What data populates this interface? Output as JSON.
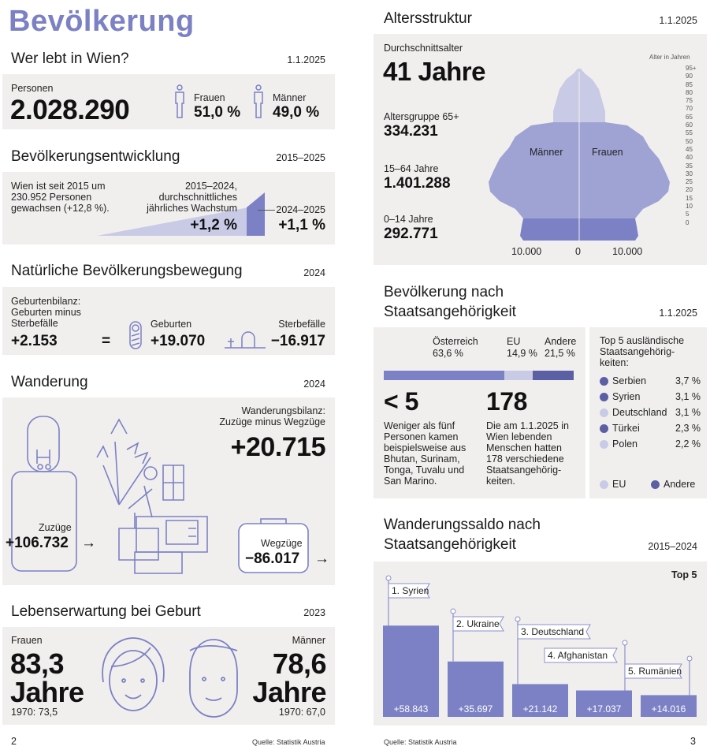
{
  "colors": {
    "accent": "#7b81c4",
    "dark": "#5b5fa3",
    "light": "#c9cbe6",
    "mid": "#9ea3d4",
    "panel": "#f1efee"
  },
  "left": {
    "title": "Bevölkerung",
    "wer": {
      "heading": "Wer lebt in Wien?",
      "date": "1.1.2025",
      "personen_label": "Personen",
      "personen_value": "2.028.290",
      "frauen_label": "Frauen",
      "frauen_value": "51,0 %",
      "maenner_label": "Männer",
      "maenner_value": "49,0 %"
    },
    "entw": {
      "heading": "Bevölkerungsentwicklung",
      "date": "2015–2025",
      "text": "Wien ist seit 2015 um 230.952 Personen gewachsen (+12,8 %).",
      "avg_label": "2015–2024, durchschnittliches jährliches Wachstum",
      "avg_value": "+1,2 %",
      "last_label": "2024–2025",
      "last_value": "+1,1 %"
    },
    "natur": {
      "heading": "Natürliche Bevölkerungsbewegung",
      "date": "2024",
      "bilanz_label": "Geburtenbilanz: Geburten minus Sterbefälle",
      "bilanz_value": "+2.153",
      "eq": "=",
      "geb_label": "Geburten",
      "geb_value": "+19.070",
      "sterb_label": "Sterbefälle",
      "sterb_value": "−16.917"
    },
    "wand": {
      "heading": "Wanderung",
      "date": "2024",
      "bilanz_label": "Wanderungsbilanz: Zuzüge minus Wegzüge",
      "bilanz_value": "+20.715",
      "zu_label": "Zuzüge",
      "zu_value": "+106.732",
      "weg_label": "Wegzüge",
      "weg_value": "−86.017",
      "arrow": "→"
    },
    "leben": {
      "heading": "Lebenserwartung bei Geburt",
      "date": "2023",
      "f_label": "Frauen",
      "f_value": "83,3",
      "f_unit": "Jahre",
      "f_1970": "1970: 73,5",
      "m_label": "Männer",
      "m_value": "78,6",
      "m_unit": "Jahre",
      "m_1970": "1970: 67,0"
    },
    "page": "2",
    "source": "Quelle: Statistik Austria"
  },
  "right": {
    "alter": {
      "heading": "Altersstruktur",
      "date": "1.1.2025",
      "durch_label": "Durchschnittsalter",
      "durch_value": "41 Jahre",
      "g65_label": "Altersgruppe 65+",
      "g65_value": "334.231",
      "g15_label": "15–64 Jahre",
      "g15_value": "1.401.288",
      "g0_label": "0–14 Jahre",
      "g0_value": "292.771",
      "axis_title": "Alter in Jahren",
      "ages": [
        "95+",
        "90",
        "85",
        "80",
        "75",
        "70",
        "65",
        "60",
        "55",
        "50",
        "45",
        "40",
        "35",
        "30",
        "25",
        "20",
        "15",
        "10",
        "5",
        "0"
      ],
      "maenner": "Männer",
      "frauen": "Frauen",
      "x_ticks": [
        "10.000",
        "0",
        "10.000"
      ]
    },
    "staat": {
      "heading1": "Bevölkerung nach",
      "heading2": "Staatsangehörigkeit",
      "date": "1.1.2025",
      "oe_label": "Österreich",
      "oe_value": "63,6 %",
      "eu_label": "EU",
      "eu_value": "14,9 %",
      "andere_label": "Andere",
      "andere_value": "21,5 %",
      "shares": [
        63.6,
        14.9,
        21.5
      ],
      "lt5": "< 5",
      "lt5_text": "Weniger als fünf Personen kamen beispielsweise aus Bhutan, Surinam, Tonga, Tuvalu und San Marino.",
      "n178": "178",
      "n178_text": "Die am 1.1.2025 in Wien lebenden Menschen hatten 178 verschiedene Staatsangehörig-keiten.",
      "top5_title": "Top 5 ausländische Staatsangehörig-keiten:",
      "top5": [
        {
          "name": "Serbien",
          "value": "3,7 %",
          "type": "andere"
        },
        {
          "name": "Syrien",
          "value": "3,1 %",
          "type": "andere"
        },
        {
          "name": "Deutschland",
          "value": "3,1 %",
          "type": "eu"
        },
        {
          "name": "Türkei",
          "value": "2,3 %",
          "type": "andere"
        },
        {
          "name": "Polen",
          "value": "2,2 %",
          "type": "eu"
        }
      ],
      "legend_eu": "EU",
      "legend_andere": "Andere"
    },
    "saldo": {
      "heading1": "Wanderungssaldo nach",
      "heading2": "Staatsangehörigkeit",
      "date": "2015–2024",
      "top": "Top 5"
    },
    "page": "3",
    "source": "Quelle: Statistik Austria"
  },
  "chart_data": {
    "type": "bar",
    "title": "Wanderungssaldo nach Staatsangehörigkeit",
    "categories": [
      "1. Syrien",
      "2. Ukraine",
      "3. Deutschland",
      "4. Afghanistan",
      "5. Rumänien"
    ],
    "values": [
      58843,
      35697,
      21142,
      17037,
      14016
    ],
    "labels": [
      "+58.843",
      "+35.697",
      "+21.142",
      "+17.037",
      "+14.016"
    ],
    "ylim": [
      0,
      60000
    ]
  }
}
